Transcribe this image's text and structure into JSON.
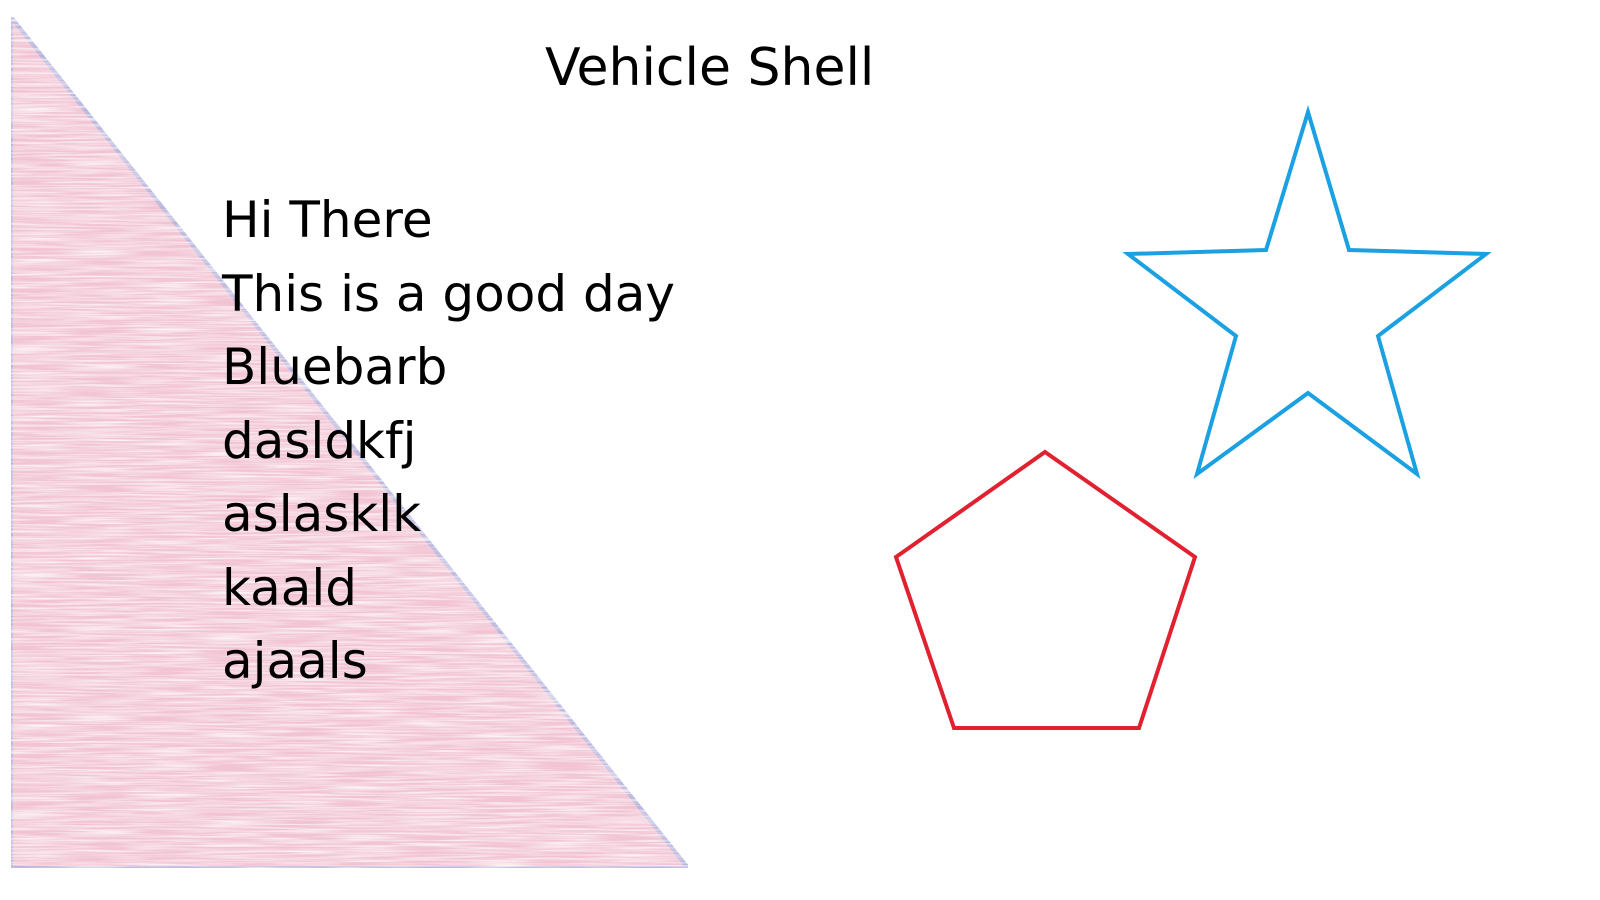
{
  "title": "Vehicle Shell",
  "text_lines": [
    "Hi There",
    "This is a good day",
    "Bluebarb",
    "dasldkfj",
    "aslasklk",
    "kaald",
    "ajaals"
  ],
  "shapes": {
    "triangle": {
      "fill": "#f2c3d3",
      "stroke": "#b9b6de"
    },
    "star": {
      "stroke": "#1ba1e2"
    },
    "pentagon": {
      "stroke": "#e02130"
    }
  }
}
